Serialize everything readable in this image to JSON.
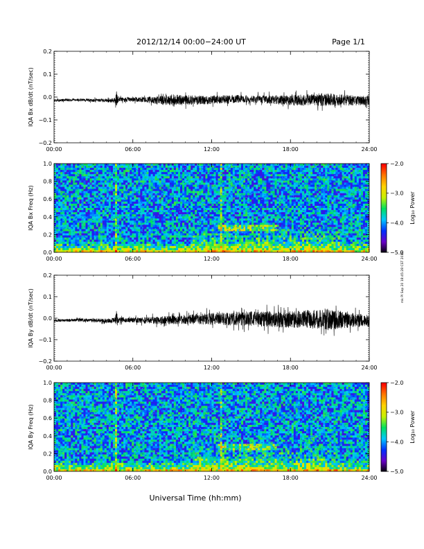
{
  "header": {
    "title": "2012/12/14  00:00−24:00 UT",
    "page": "Page 1/1"
  },
  "footer": {
    "xlabel": "Universal Time (hh:mm)"
  },
  "side_note": "mk PI Sep 20 18:45:28 CST 2019",
  "chart_data": [
    {
      "type": "line",
      "ylabel": "IQA Bx dB/dt (nT/sec)",
      "ylim": [
        -0.2,
        0.2
      ],
      "yticks": [
        "0.2",
        "0.1",
        "0.0",
        "−0.1",
        "−0.2"
      ],
      "xlim": [
        0,
        24
      ],
      "xticks": [
        "00:00",
        "06:00",
        "12:00",
        "18:00",
        "24:00"
      ],
      "grid": false,
      "series": [
        {
          "color": "#000000",
          "x_hours": [
            0,
            1,
            2,
            3,
            4,
            4.6,
            4.75,
            4.9,
            6,
            7,
            8,
            8.5,
            9,
            10,
            11,
            12,
            13,
            14,
            15,
            16,
            17,
            18,
            19,
            20,
            20.5,
            21,
            22,
            23,
            24
          ],
          "offset": [
            -0.015,
            -0.013,
            -0.012,
            -0.014,
            -0.015,
            -0.015,
            -0.005,
            -0.012,
            -0.01,
            -0.012,
            -0.013,
            -0.015,
            -0.012,
            -0.014,
            -0.013,
            -0.012,
            -0.01,
            -0.008,
            -0.01,
            -0.01,
            -0.012,
            -0.015,
            -0.012,
            -0.012,
            -0.01,
            -0.012,
            -0.013,
            -0.015,
            -0.015
          ],
          "amplitude": [
            0.005,
            0.006,
            0.006,
            0.007,
            0.008,
            0.01,
            0.035,
            0.01,
            0.01,
            0.012,
            0.018,
            0.022,
            0.024,
            0.022,
            0.02,
            0.02,
            0.018,
            0.017,
            0.016,
            0.018,
            0.02,
            0.022,
            0.025,
            0.027,
            0.03,
            0.028,
            0.025,
            0.022,
            0.02
          ]
        }
      ]
    },
    {
      "type": "heatmap",
      "ylabel": "IQA Bx Freq (Hz)",
      "ylim": [
        0,
        1
      ],
      "yticks": [
        "1.0",
        "0.8",
        "0.6",
        "0.4",
        "0.2",
        "0.0"
      ],
      "xlim": [
        0,
        24
      ],
      "xticks": [
        "00:00",
        "06:00",
        "12:00",
        "18:00",
        "24:00"
      ],
      "colorbar": {
        "label": "Log₁₀ Power",
        "range": [
          -5,
          -2
        ],
        "ticks": [
          "−2.0",
          "−3.0",
          "−4.0",
          "−5.0"
        ],
        "colors": [
          "#000000",
          "#6a00c8",
          "#0030ff",
          "#00c8ff",
          "#00e060",
          "#c8f000",
          "#ffd200",
          "#ff7800",
          "#ff0000"
        ]
      }
    },
    {
      "type": "line",
      "ylabel": "IQA By dB/dt (nT/sec)",
      "ylim": [
        -0.2,
        0.2
      ],
      "yticks": [
        "0.2",
        "0.1",
        "0.0",
        "−0.1",
        "−0.2"
      ],
      "xlim": [
        0,
        24
      ],
      "xticks": [
        "00:00",
        "06:00",
        "12:00",
        "18:00",
        "24:00"
      ],
      "grid": false,
      "series": [
        {
          "color": "#000000",
          "x_hours": [
            0,
            1,
            2,
            3,
            4,
            4.6,
            4.75,
            4.9,
            6,
            7,
            8,
            9,
            10,
            11,
            12,
            13,
            14,
            15,
            16,
            17,
            18,
            19,
            20,
            20.5,
            21,
            21.5,
            22,
            23,
            24
          ],
          "offset": [
            -0.012,
            -0.01,
            -0.008,
            -0.01,
            -0.012,
            -0.01,
            0.0,
            -0.008,
            -0.008,
            -0.01,
            -0.01,
            -0.008,
            -0.006,
            -0.005,
            -0.004,
            -0.003,
            -0.002,
            -0.003,
            -0.005,
            -0.006,
            -0.006,
            -0.006,
            -0.005,
            -0.003,
            -0.004,
            -0.006,
            -0.008,
            -0.01,
            -0.012
          ],
          "amplitude": [
            0.006,
            0.007,
            0.007,
            0.008,
            0.01,
            0.012,
            0.035,
            0.012,
            0.012,
            0.015,
            0.018,
            0.02,
            0.022,
            0.025,
            0.028,
            0.03,
            0.032,
            0.035,
            0.036,
            0.038,
            0.04,
            0.042,
            0.045,
            0.048,
            0.05,
            0.045,
            0.04,
            0.032,
            0.028
          ]
        }
      ]
    },
    {
      "type": "heatmap",
      "ylabel": "IQA By Freq (Hz)",
      "ylim": [
        0,
        1
      ],
      "yticks": [
        "1.0",
        "0.8",
        "0.6",
        "0.4",
        "0.2",
        "0.0"
      ],
      "xlim": [
        0,
        24
      ],
      "xticks": [
        "00:00",
        "06:00",
        "12:00",
        "18:00",
        "24:00"
      ],
      "colorbar": {
        "label": "Log₁₀ Power",
        "range": [
          -5,
          -2
        ],
        "ticks": [
          "−2.0",
          "−3.0",
          "−4.0",
          "−5.0"
        ],
        "colors": [
          "#000000",
          "#6a00c8",
          "#0030ff",
          "#00c8ff",
          "#00e060",
          "#c8f000",
          "#ffd200",
          "#ff7800",
          "#ff0000"
        ]
      }
    }
  ]
}
